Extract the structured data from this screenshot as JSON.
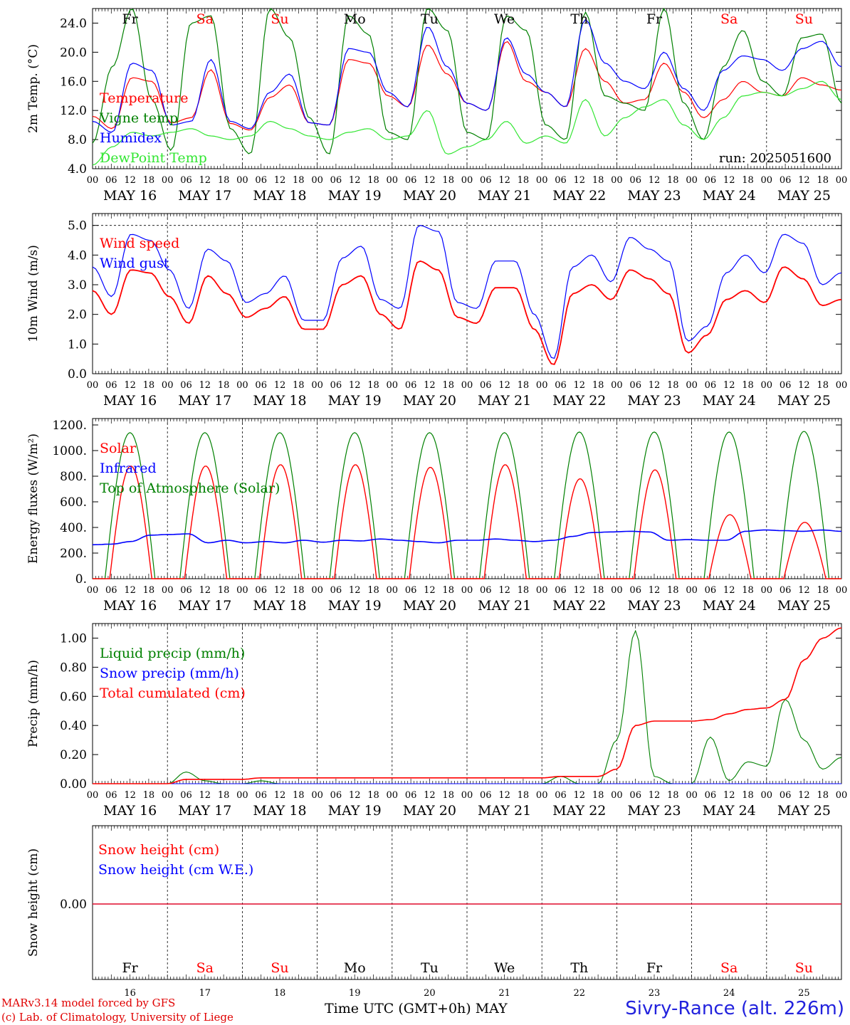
{
  "footer": {
    "model": "MARv3.14 model forced by GFS",
    "lab": "(c) Lab. of Climatology, University of Liege",
    "xlabel": "Time UTC (GMT+0h) MAY",
    "station": "Sivry-Rance (alt. 226m)"
  },
  "colors": {
    "red": "#ff0000",
    "green": "#008000",
    "blue": "#0000ff",
    "lightgreen": "#33e633",
    "weekend": "#ff0000",
    "weekday": "#000000"
  },
  "chart_data": [
    {
      "type": "line",
      "ylabel": "2m Temp. (°C)",
      "ylim": [
        4,
        26
      ],
      "yticks": [
        "4.0",
        "8.0",
        "12.0",
        "16.0",
        "20.0",
        "24.0"
      ],
      "ytick_values": [
        4,
        8,
        12,
        16,
        20,
        24
      ],
      "annotation": "run: 2025051600",
      "days": [
        "Fr",
        "Sa",
        "Su",
        "Mo",
        "Tu",
        "We",
        "Th",
        "Fr",
        "Sa",
        "Su"
      ],
      "day_labels": [
        "MAY 16",
        "MAY 17",
        "MAY 18",
        "MAY 19",
        "MAY 20",
        "MAY 21",
        "MAY 22",
        "MAY 23",
        "MAY 24",
        "MAY 25"
      ],
      "hour_ticks": [
        "00",
        "06",
        "12",
        "18"
      ],
      "x_hours_per_point": 6,
      "series": [
        {
          "name": "Temperature",
          "color": "#ff0000",
          "values": [
            11.2,
            9.5,
            16.5,
            16.0,
            10.3,
            11.0,
            17.6,
            10.2,
            9.3,
            13.8,
            15.5,
            10.3,
            10.0,
            19.0,
            18.5,
            14.0,
            12.5,
            21.0,
            17.0,
            13.0,
            12.0,
            21.5,
            16.0,
            14.5,
            12.5,
            20.5,
            16.0,
            13.0,
            13.5,
            18.5,
            14.5,
            11.0,
            13.5,
            16.0,
            14.5,
            14.0,
            16.5,
            15.5,
            14.8
          ]
        },
        {
          "name": "Vigne temp",
          "color": "#008000",
          "values": [
            7.5,
            18.0,
            26.0,
            13.5,
            6.5,
            24.0,
            25.0,
            9.5,
            6.0,
            26.0,
            22.0,
            11.0,
            6.0,
            25.0,
            22.5,
            9.0,
            8.0,
            26.0,
            23.0,
            9.0,
            8.0,
            25.0,
            23.0,
            10.0,
            8.0,
            25.5,
            14.0,
            13.0,
            12.0,
            26.0,
            13.0,
            8.0,
            18.0,
            23.0,
            16.0,
            14.0,
            22.0,
            22.5,
            13.0
          ]
        },
        {
          "name": "Humidex",
          "color": "#0000ff",
          "values": [
            10.5,
            9.0,
            18.5,
            17.5,
            10.0,
            10.5,
            19.0,
            10.5,
            9.5,
            14.5,
            17.0,
            10.3,
            10.0,
            20.5,
            20.0,
            14.5,
            12.5,
            23.5,
            18.0,
            13.0,
            12.0,
            22.0,
            17.0,
            14.5,
            12.5,
            24.5,
            18.5,
            16.0,
            15.0,
            20.0,
            15.0,
            12.0,
            17.5,
            19.5,
            19.0,
            17.5,
            20.5,
            21.5,
            18.0
          ]
        },
        {
          "name": "DewPoint Temp",
          "color": "#33e633",
          "values": [
            4.5,
            7.0,
            9.0,
            8.5,
            9.0,
            9.5,
            8.5,
            8.0,
            8.5,
            10.5,
            9.5,
            8.5,
            8.0,
            9.0,
            9.5,
            8.0,
            8.5,
            12.0,
            6.0,
            7.0,
            8.0,
            10.5,
            7.5,
            8.5,
            7.5,
            13.5,
            8.5,
            11.0,
            12.5,
            13.5,
            10.0,
            8.0,
            11.0,
            14.0,
            14.5,
            14.0,
            15.0,
            16.0,
            13.5
          ]
        }
      ]
    },
    {
      "type": "line",
      "ylabel": "10m Wind (m/s)",
      "ylim": [
        0,
        5.4
      ],
      "yticks": [
        "0.0",
        "1.0",
        "2.0",
        "3.0",
        "4.0",
        "5.0"
      ],
      "ytick_values": [
        0,
        1,
        2,
        3,
        4,
        5
      ],
      "dashed_line": 5.0,
      "series": [
        {
          "name": "Wind speed",
          "color": "#ff0000",
          "values": [
            2.8,
            2.0,
            3.5,
            3.4,
            2.6,
            1.7,
            3.3,
            2.7,
            1.9,
            2.2,
            2.6,
            1.5,
            1.5,
            3.0,
            3.3,
            2.0,
            1.5,
            3.8,
            3.5,
            1.9,
            1.7,
            2.9,
            2.9,
            1.5,
            0.3,
            2.7,
            3.0,
            2.5,
            3.5,
            3.2,
            2.7,
            0.7,
            1.3,
            2.5,
            2.8,
            2.4,
            3.6,
            3.2,
            2.3,
            2.5
          ]
        },
        {
          "name": "Wind gust",
          "color": "#0000ff",
          "values": [
            3.6,
            2.6,
            4.7,
            4.5,
            3.5,
            2.2,
            4.2,
            3.8,
            2.4,
            2.7,
            3.3,
            1.8,
            1.8,
            3.9,
            4.3,
            2.5,
            2.2,
            5.0,
            4.8,
            2.4,
            2.2,
            3.8,
            3.8,
            2.0,
            0.5,
            3.6,
            4.0,
            3.1,
            4.6,
            4.2,
            3.8,
            1.1,
            1.6,
            3.4,
            4.0,
            3.4,
            4.7,
            4.4,
            3.0,
            3.4
          ]
        }
      ]
    },
    {
      "type": "line",
      "ylabel": "Energy fluxes (W/m²)",
      "ylim": [
        0,
        1250
      ],
      "yticks": [
        "0.",
        "200.",
        "400.",
        "600.",
        "800.",
        "1000.",
        "1200."
      ],
      "ytick_values": [
        0,
        200,
        400,
        600,
        800,
        1000,
        1200
      ],
      "series": [
        {
          "name": "Solar",
          "color": "#ff0000",
          "peaks": [
            880,
            880,
            890,
            890,
            870,
            890,
            780,
            850,
            500,
            440
          ]
        },
        {
          "name": "Infrared",
          "color": "#0000ff",
          "values": [
            265,
            270,
            290,
            340,
            345,
            350,
            280,
            300,
            280,
            290,
            280,
            300,
            285,
            300,
            295,
            310,
            300,
            290,
            280,
            300,
            300,
            310,
            300,
            290,
            300,
            330,
            360,
            365,
            370,
            365,
            300,
            305,
            300,
            300,
            370,
            380,
            375,
            370,
            380,
            370
          ]
        },
        {
          "name": "Top of Atmosphere (Solar)",
          "color": "#008000",
          "peaks": [
            1140,
            1140,
            1140,
            1140,
            1140,
            1140,
            1145,
            1145,
            1145,
            1150
          ]
        }
      ]
    },
    {
      "type": "line",
      "ylabel": "Precip (mm/h)",
      "ylim": [
        0,
        1.1
      ],
      "yticks": [
        "0.00",
        "0.20",
        "0.40",
        "0.60",
        "0.80",
        "1.00"
      ],
      "ytick_values": [
        0,
        0.2,
        0.4,
        0.6,
        0.8,
        1.0
      ],
      "series": [
        {
          "name": "Liquid precip (mm/h)",
          "color": "#008000",
          "values": [
            0,
            0,
            0,
            0,
            0,
            0.08,
            0.02,
            0,
            0,
            0.02,
            0,
            0,
            0,
            0,
            0,
            0,
            0,
            0,
            0,
            0,
            0,
            0,
            0,
            0,
            0,
            0.05,
            0,
            0,
            0.3,
            1.05,
            0.05,
            0,
            0,
            0.32,
            0.02,
            0.15,
            0.12,
            0.58,
            0.3,
            0.1,
            0.18
          ]
        },
        {
          "name": "Snow precip (mm/h)",
          "color": "#0000ff",
          "values": [
            0,
            0,
            0,
            0,
            0,
            0,
            0,
            0,
            0,
            0,
            0,
            0,
            0,
            0,
            0,
            0,
            0,
            0,
            0,
            0,
            0,
            0,
            0,
            0,
            0,
            0,
            0,
            0,
            0,
            0,
            0,
            0,
            0,
            0,
            0,
            0,
            0,
            0,
            0,
            0,
            0
          ]
        },
        {
          "name": "Total cumulated (cm)",
          "color": "#ff0000",
          "values": [
            0,
            0,
            0,
            0,
            0,
            0.03,
            0.03,
            0.03,
            0.03,
            0.04,
            0.04,
            0.04,
            0.04,
            0.04,
            0.04,
            0.04,
            0.04,
            0.04,
            0.04,
            0.04,
            0.04,
            0.04,
            0.04,
            0.04,
            0.04,
            0.05,
            0.05,
            0.05,
            0.1,
            0.4,
            0.43,
            0.43,
            0.43,
            0.44,
            0.48,
            0.51,
            0.52,
            0.58,
            0.85,
            1.0,
            1.07
          ]
        }
      ]
    },
    {
      "type": "line",
      "ylabel": "Snow height (cm)",
      "yticks": [
        "0.00"
      ],
      "series": [
        {
          "name": "Snow height (cm)",
          "color": "#ff0000",
          "values": [
            0,
            0
          ]
        },
        {
          "name": "Snow height (cm W.E.)",
          "color": "#0000ff",
          "values": [
            0,
            0
          ]
        }
      ],
      "day_numbers": [
        "16",
        "17",
        "18",
        "19",
        "20",
        "21",
        "22",
        "23",
        "24",
        "25"
      ]
    }
  ]
}
